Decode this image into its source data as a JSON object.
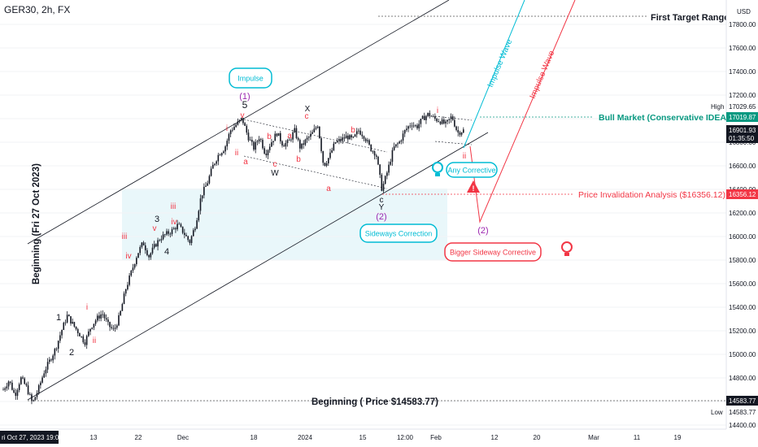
{
  "header": {
    "symbol": "GER30, 2h, FX",
    "currency": "USD"
  },
  "chart_data": {
    "type": "candlestick",
    "symbol": "GER30",
    "interval": "2h",
    "ylim": [
      14400,
      18000
    ],
    "y_ticks": [
      14400,
      14600,
      14800,
      15000,
      15200,
      15400,
      15600,
      15800,
      16000,
      16200,
      16400,
      16600,
      16800,
      17000,
      17200,
      17400,
      17600,
      17800
    ],
    "x_ticks": [
      {
        "label": "ri Oct 27, 2023",
        "time": "19:00",
        "highlighted": true
      },
      {
        "label": "13"
      },
      {
        "label": "22"
      },
      {
        "label": "Dec"
      },
      {
        "label": "18"
      },
      {
        "label": "2024"
      },
      {
        "label": "15"
      },
      {
        "label": "12:00"
      },
      {
        "label": "Feb"
      },
      {
        "label": "12"
      },
      {
        "label": "20"
      },
      {
        "label": "Mar"
      },
      {
        "label": "11"
      },
      {
        "label": "19"
      }
    ],
    "price_tags": [
      {
        "name": "high-label",
        "text": "High",
        "value": 17029.65
      },
      {
        "name": "bull-tag",
        "text": "17019.87",
        "value": 17019.87,
        "color": "#089981"
      },
      {
        "name": "current-tag",
        "text": "16901.93",
        "value": 16901.93,
        "sub": "01:35:50",
        "color": "#131722"
      },
      {
        "name": "invalidation-tag",
        "text": "16356.12",
        "value": 16356.12,
        "color": "#f23645"
      },
      {
        "name": "beginning-tag",
        "text": "14583.77",
        "value": 14583.77,
        "color": "#131722"
      },
      {
        "name": "low-label",
        "text": "Low",
        "value": 14583.77
      }
    ],
    "path_points": [
      [
        0,
        14700
      ],
      [
        1,
        14780
      ],
      [
        2,
        14650
      ],
      [
        3,
        14800
      ],
      [
        4,
        14720
      ],
      [
        5,
        14583
      ],
      [
        6,
        14700
      ],
      [
        7,
        14850
      ],
      [
        8,
        14950
      ],
      [
        9,
        15050
      ],
      [
        10,
        15200
      ],
      [
        11,
        15330
      ],
      [
        12,
        15250
      ],
      [
        13,
        15180
      ],
      [
        14,
        15100
      ],
      [
        15,
        15230
      ],
      [
        16,
        15300
      ],
      [
        17,
        15350
      ],
      [
        18,
        15250
      ],
      [
        19,
        15200
      ],
      [
        20,
        15330
      ],
      [
        21,
        15550
      ],
      [
        22,
        15700
      ],
      [
        23,
        15850
      ],
      [
        24,
        15950
      ],
      [
        25,
        15830
      ],
      [
        26,
        15920
      ],
      [
        27,
        15990
      ],
      [
        28,
        16020
      ],
      [
        29,
        16050
      ],
      [
        30,
        16100
      ],
      [
        31,
        16030
      ],
      [
        32,
        15950
      ],
      [
        33,
        16100
      ],
      [
        34,
        16350
      ],
      [
        35,
        16450
      ],
      [
        36,
        16600
      ],
      [
        37,
        16700
      ],
      [
        38,
        16750
      ],
      [
        39,
        16900
      ],
      [
        40,
        16950
      ],
      [
        41,
        17000
      ],
      [
        42,
        16850
      ],
      [
        43,
        16750
      ],
      [
        44,
        16850
      ],
      [
        45,
        16700
      ],
      [
        46,
        16800
      ],
      [
        47,
        16880
      ],
      [
        48,
        16780
      ],
      [
        49,
        16800
      ],
      [
        50,
        16900
      ],
      [
        51,
        16750
      ],
      [
        52,
        16820
      ],
      [
        53,
        16870
      ],
      [
        54,
        16950
      ],
      [
        55,
        16600
      ],
      [
        56,
        16680
      ],
      [
        57,
        16800
      ],
      [
        58,
        16820
      ],
      [
        59,
        16850
      ],
      [
        60,
        16820
      ],
      [
        61,
        16900
      ],
      [
        62,
        16850
      ],
      [
        63,
        16750
      ],
      [
        64,
        16700
      ],
      [
        65,
        16400
      ],
      [
        66,
        16560
      ],
      [
        67,
        16750
      ],
      [
        68,
        16800
      ],
      [
        69,
        16900
      ],
      [
        70,
        16960
      ],
      [
        71,
        16930
      ],
      [
        72,
        17000
      ],
      [
        73,
        17040
      ],
      [
        74,
        17000
      ],
      [
        75,
        16980
      ],
      [
        76,
        16950
      ],
      [
        77,
        17020
      ],
      [
        78,
        16880
      ],
      [
        79,
        16901
      ]
    ],
    "last_index": 79,
    "dates_visible_until_index": 150
  },
  "annotations": {
    "first_target": "First Target Range",
    "bull_market": "Bull Market (Conservative IDEA)",
    "price_invalidation": "Price Invalidation Analysis ($16356.12)",
    "beginning_price": "Beginning ( Price $14583.77)",
    "beginning_vertical": "Beginning (Fri 27 Oct 2023)",
    "impulse_wave_blue": "Impulse Wave",
    "impulse_wave_red": "Impulse Wave",
    "impulse_box": "Impulse",
    "sideways_correction": "Sideways Correction",
    "any_corrective": "Any Corrective",
    "bigger_sideway": "Bigger Sideway Corrective",
    "wave_labels": [
      {
        "t": "1",
        "c": "#131722"
      },
      {
        "t": "2",
        "c": "#131722"
      },
      {
        "t": "3",
        "c": "#131722"
      },
      {
        "t": "4",
        "c": "#131722"
      },
      {
        "t": "5",
        "c": "#131722"
      },
      {
        "t": "(1)",
        "c": "#9c27b0"
      },
      {
        "t": "(2)",
        "c": "#9c27b0"
      },
      {
        "t": "(2)",
        "c": "#9c27b0"
      },
      {
        "t": "i",
        "c": "#f23645"
      },
      {
        "t": "ii",
        "c": "#f23645"
      },
      {
        "t": "iii",
        "c": "#f23645"
      },
      {
        "t": "iv",
        "c": "#f23645"
      },
      {
        "t": "v",
        "c": "#f23645"
      },
      {
        "t": "i",
        "c": "#f23645"
      },
      {
        "t": "ii",
        "c": "#f23645"
      },
      {
        "t": "iii",
        "c": "#f23645"
      },
      {
        "t": "iv",
        "c": "#f23645"
      },
      {
        "t": "v",
        "c": "#f23645"
      },
      {
        "t": "X",
        "c": "#131722"
      },
      {
        "t": "W",
        "c": "#131722"
      },
      {
        "t": "Y",
        "c": "#131722"
      },
      {
        "t": "a",
        "c": "#f23645"
      },
      {
        "t": "b",
        "c": "#f23645"
      },
      {
        "t": "c",
        "c": "#f23645"
      },
      {
        "t": "a",
        "c": "#f23645"
      },
      {
        "t": "b",
        "c": "#f23645"
      },
      {
        "t": "c",
        "c": "#f23645"
      },
      {
        "t": "a",
        "c": "#f23645"
      },
      {
        "t": "b",
        "c": "#f23645"
      },
      {
        "t": "c",
        "c": "#131722"
      },
      {
        "t": "i",
        "c": "#f23645"
      },
      {
        "t": "ii",
        "c": "#f23645"
      }
    ]
  },
  "colors": {
    "blue": "#00bcd4",
    "red": "#f23645",
    "green": "#089981",
    "purple": "#9c27b0",
    "zone": "#e3f2fd"
  }
}
